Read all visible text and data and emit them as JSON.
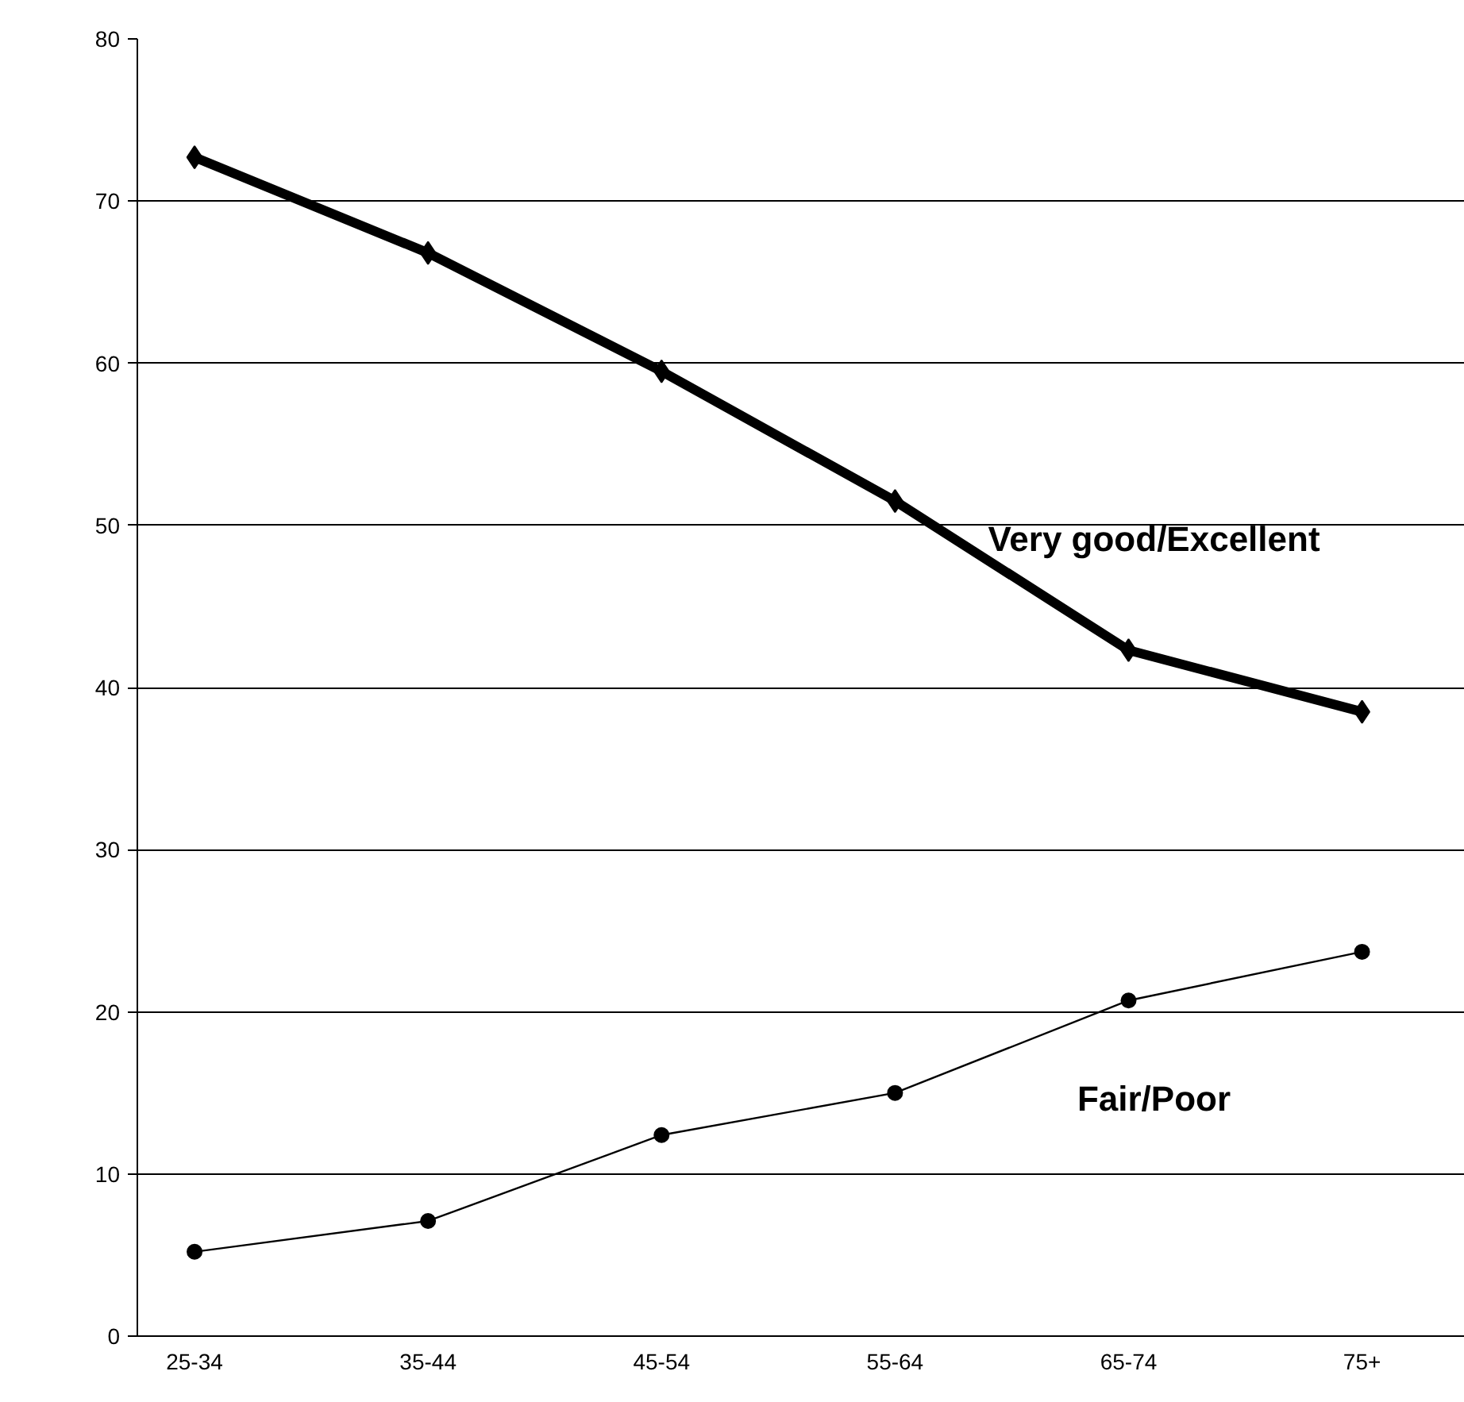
{
  "chart_data": {
    "type": "line",
    "categories": [
      "25-34",
      "35-44",
      "45-54",
      "55-64",
      "65-74",
      "75+"
    ],
    "series": [
      {
        "name": "Very good/Excellent",
        "color": "#000000",
        "marker": "diamond",
        "values": [
          72.7,
          66.8,
          59.5,
          51.5,
          42.3,
          38.5
        ]
      },
      {
        "name": "Fair/Poor",
        "color": "#000000",
        "marker": "circle",
        "values": [
          5.2,
          7.1,
          12.4,
          15.0,
          20.7,
          23.7
        ]
      }
    ],
    "ylim": [
      0,
      80
    ],
    "yticks": [
      0,
      10,
      20,
      30,
      40,
      50,
      60,
      70,
      80
    ],
    "grid": "y",
    "legend": false
  }
}
